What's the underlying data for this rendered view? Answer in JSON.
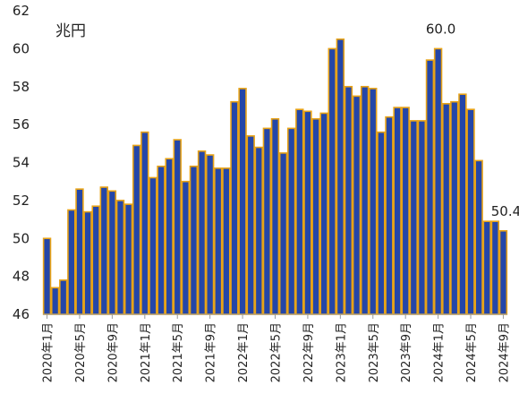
{
  "chart_data": {
    "type": "bar",
    "unit_label": "兆円",
    "ylim": [
      46,
      62
    ],
    "yticks": [
      46,
      48,
      50,
      52,
      54,
      56,
      58,
      60,
      62
    ],
    "grid": false,
    "colors": {
      "bar_fill": "#2446a8",
      "bar_edge": "#e8a317",
      "axis": "#999999"
    },
    "categories": [
      "2020年1月",
      "2020年2月",
      "2020年3月",
      "2020年4月",
      "2020年5月",
      "2020年6月",
      "2020年7月",
      "2020年8月",
      "2020年9月",
      "2020年10月",
      "2020年11月",
      "2020年12月",
      "2021年1月",
      "2021年2月",
      "2021年3月",
      "2021年4月",
      "2021年5月",
      "2021年6月",
      "2021年7月",
      "2021年8月",
      "2021年9月",
      "2021年10月",
      "2021年11月",
      "2021年12月",
      "2022年1月",
      "2022年2月",
      "2022年3月",
      "2022年4月",
      "2022年5月",
      "2022年6月",
      "2022年7月",
      "2022年8月",
      "2022年9月",
      "2022年10月",
      "2022年11月",
      "2022年12月",
      "2023年1月",
      "2023年2月",
      "2023年3月",
      "2023年4月",
      "2023年5月",
      "2023年6月",
      "2023年7月",
      "2023年8月",
      "2023年9月",
      "2023年10月",
      "2023年11月",
      "2023年12月",
      "2024年1月",
      "2024年2月",
      "2024年3月",
      "2024年4月",
      "2024年5月",
      "2024年6月",
      "2024年7月",
      "2024年8月",
      "2024年9月"
    ],
    "tick_labels": [
      {
        "index": 0,
        "text": "2020年1月"
      },
      {
        "index": 4,
        "text": "2020年5月"
      },
      {
        "index": 8,
        "text": "2020年9月"
      },
      {
        "index": 12,
        "text": "2021年1月"
      },
      {
        "index": 16,
        "text": "2021年5月"
      },
      {
        "index": 20,
        "text": "2021年9月"
      },
      {
        "index": 24,
        "text": "2022年1月"
      },
      {
        "index": 28,
        "text": "2022年5月"
      },
      {
        "index": 32,
        "text": "2022年9月"
      },
      {
        "index": 36,
        "text": "2023年1月"
      },
      {
        "index": 40,
        "text": "2023年5月"
      },
      {
        "index": 44,
        "text": "2023年9月"
      },
      {
        "index": 48,
        "text": "2024年1月"
      },
      {
        "index": 52,
        "text": "2024年5月"
      },
      {
        "index": 56,
        "text": "2024年9月"
      }
    ],
    "values": [
      50.0,
      47.4,
      47.8,
      51.5,
      52.6,
      51.4,
      51.7,
      52.7,
      52.5,
      52.0,
      51.8,
      54.9,
      55.6,
      53.2,
      53.8,
      54.2,
      55.2,
      53.0,
      53.8,
      54.6,
      54.4,
      53.7,
      53.7,
      57.2,
      57.9,
      55.4,
      54.8,
      55.8,
      56.3,
      54.5,
      55.8,
      56.8,
      56.7,
      56.3,
      56.6,
      60.0,
      60.5,
      58.0,
      57.5,
      58.0,
      57.9,
      55.6,
      56.4,
      56.9,
      56.9,
      56.2,
      56.2,
      59.4,
      60.0,
      57.1,
      57.2,
      57.6,
      56.8,
      54.1,
      50.9,
      50.9,
      50.4
    ],
    "annotations": [
      {
        "index": 48,
        "text": "60.0"
      },
      {
        "index": 56,
        "text": "50.4"
      }
    ]
  }
}
